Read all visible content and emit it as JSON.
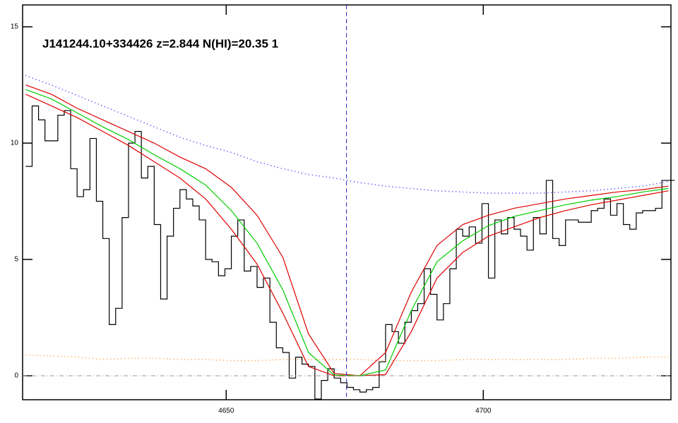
{
  "chart_data": {
    "type": "line",
    "annotation": "J141244.10+334426 z=2.844 N(HI)=20.35 1",
    "xlim": [
      4610.4,
      4736.5
    ],
    "ylim": [
      -1.03,
      15.94
    ],
    "xticks": [
      4650,
      4700
    ],
    "yticks": [
      0,
      5,
      10,
      15
    ],
    "vline": 4673.4,
    "hline": 0,
    "series": [
      {
        "name": "flux",
        "color": "#000000",
        "style": "step",
        "x": [
          4611.0,
          4612.25,
          4613.5,
          4614.75,
          4616.0,
          4617.25,
          4618.5,
          4619.75,
          4621.0,
          4622.25,
          4623.5,
          4624.75,
          4626.0,
          4627.25,
          4628.5,
          4629.75,
          4631.0,
          4632.25,
          4633.5,
          4634.75,
          4636.0,
          4637.25,
          4638.5,
          4639.75,
          4641.0,
          4642.25,
          4643.5,
          4644.75,
          4646.0,
          4647.25,
          4648.5,
          4649.75,
          4651.0,
          4652.25,
          4653.5,
          4654.75,
          4656.0,
          4657.25,
          4658.5,
          4659.75,
          4661.0,
          4662.25,
          4663.5,
          4664.75,
          4666.0,
          4667.25,
          4668.5,
          4669.75,
          4671.0,
          4672.25,
          4673.5,
          4674.75,
          4676.0,
          4677.25,
          4678.5,
          4679.75,
          4681.0,
          4682.25,
          4683.5,
          4684.75,
          4686.0,
          4687.25,
          4688.5,
          4689.75,
          4691.0,
          4692.25,
          4693.5,
          4694.75,
          4696.0,
          4697.25,
          4698.5,
          4699.75,
          4701.0,
          4702.25,
          4703.5,
          4704.75,
          4706.0,
          4707.25,
          4708.5,
          4709.75,
          4711.0,
          4712.25,
          4713.5,
          4714.75,
          4716.0,
          4717.25,
          4718.5,
          4719.75,
          4721.0,
          4722.25,
          4723.5,
          4724.75,
          4726.0,
          4727.25,
          4728.5,
          4729.75,
          4731.0,
          4732.25,
          4733.5,
          4734.75,
          4736.0
        ],
        "values": [
          9.0,
          11.6,
          11.0,
          10.1,
          10.1,
          11.2,
          11.4,
          8.9,
          7.7,
          8.0,
          10.2,
          7.5,
          5.9,
          2.2,
          2.9,
          6.8,
          10.0,
          10.5,
          8.5,
          9.0,
          6.5,
          3.3,
          6.0,
          7.2,
          8.0,
          7.6,
          7.3,
          6.7,
          5.0,
          4.9,
          4.3,
          4.6,
          6.0,
          6.7,
          4.5,
          4.7,
          3.8,
          4.2,
          2.3,
          1.2,
          1.0,
          -0.1,
          0.8,
          0.5,
          0.4,
          -1.0,
          -0.2,
          0.3,
          -0.1,
          -0.3,
          -0.5,
          -0.6,
          -0.7,
          -0.6,
          -0.5,
          0.6,
          2.2,
          1.9,
          1.4,
          2.3,
          2.8,
          3.1,
          4.6,
          3.5,
          2.4,
          3.1,
          4.6,
          6.3,
          6.0,
          6.4,
          5.7,
          7.4,
          4.2,
          6.7,
          6.1,
          6.8,
          6.3,
          6.0,
          5.4,
          6.8,
          6.1,
          8.4,
          5.9,
          5.6,
          6.7,
          6.7,
          6.6,
          6.6,
          7.1,
          7.2,
          7.6,
          6.9,
          7.4,
          6.5,
          6.3,
          7.0,
          7.1,
          7.1,
          7.2,
          8.4,
          8.4
        ]
      },
      {
        "name": "continuum",
        "color": "#3333ff",
        "style": "dotted",
        "x": [
          4611,
          4616,
          4621,
          4626,
          4631,
          4636,
          4641,
          4646,
          4651,
          4656,
          4661,
          4666,
          4671,
          4676,
          4681,
          4686,
          4691,
          4696,
          4701,
          4706,
          4711,
          4716,
          4721,
          4726,
          4731,
          4736
        ],
        "values": [
          12.9,
          12.5,
          12.05,
          11.6,
          11.15,
          10.7,
          10.25,
          9.9,
          9.6,
          9.2,
          8.9,
          8.65,
          8.5,
          8.3,
          8.15,
          8.05,
          7.95,
          7.9,
          7.85,
          7.85,
          7.85,
          7.9,
          7.95,
          8.05,
          8.15,
          8.35
        ]
      },
      {
        "name": "error",
        "color": "#ff9933",
        "style": "dotted",
        "x": [
          4611,
          4616,
          4621,
          4626,
          4631,
          4636,
          4641,
          4646,
          4651,
          4656,
          4661,
          4666,
          4671,
          4676,
          4681,
          4686,
          4691,
          4696,
          4701,
          4706,
          4711,
          4716,
          4721,
          4726,
          4731,
          4736
        ],
        "values": [
          0.9,
          0.85,
          0.8,
          0.7,
          0.75,
          0.75,
          0.7,
          0.7,
          0.65,
          0.65,
          0.7,
          0.7,
          0.7,
          0.7,
          0.65,
          0.65,
          0.65,
          0.7,
          0.7,
          0.7,
          0.7,
          0.7,
          0.75,
          0.75,
          0.8,
          0.8
        ]
      },
      {
        "name": "fit-upper",
        "color": "#dd0000",
        "style": "solid",
        "x": [
          4611,
          4616,
          4621,
          4626,
          4631,
          4636,
          4641,
          4646,
          4651,
          4656,
          4661,
          4666,
          4671,
          4676,
          4681,
          4686,
          4691,
          4696,
          4701,
          4706,
          4711,
          4716,
          4721,
          4726,
          4731,
          4736
        ],
        "values": [
          12.5,
          12.1,
          11.5,
          11.0,
          10.5,
          10.0,
          9.4,
          8.9,
          8.1,
          6.9,
          5.1,
          1.8,
          0.1,
          0,
          1.0,
          3.6,
          5.6,
          6.5,
          6.9,
          7.2,
          7.4,
          7.6,
          7.75,
          7.9,
          8.0,
          8.15
        ]
      },
      {
        "name": "fit-lower",
        "color": "#dd0000",
        "style": "solid",
        "x": [
          4611,
          4616,
          4621,
          4626,
          4631,
          4636,
          4641,
          4646,
          4651,
          4656,
          4661,
          4666,
          4671,
          4676,
          4681,
          4686,
          4691,
          4696,
          4701,
          4706,
          4711,
          4716,
          4721,
          4726,
          4731,
          4736
        ],
        "values": [
          12.1,
          11.6,
          11.1,
          10.5,
          9.9,
          9.2,
          8.5,
          7.6,
          6.3,
          4.8,
          2.7,
          0.4,
          0,
          0,
          0.05,
          1.9,
          4.2,
          5.3,
          6.0,
          6.4,
          6.8,
          7.1,
          7.35,
          7.55,
          7.75,
          7.95
        ]
      },
      {
        "name": "fit",
        "color": "#00cc00",
        "style": "solid",
        "x": [
          4611,
          4616,
          4621,
          4626,
          4631,
          4636,
          4641,
          4646,
          4651,
          4656,
          4661,
          4666,
          4671,
          4676,
          4681,
          4686,
          4691,
          4696,
          4701,
          4706,
          4711,
          4716,
          4721,
          4726,
          4731,
          4736
        ],
        "values": [
          12.3,
          11.9,
          11.3,
          10.7,
          10.15,
          9.5,
          8.9,
          8.2,
          7.1,
          5.7,
          3.7,
          1.0,
          0.03,
          0,
          0.25,
          2.8,
          4.9,
          5.8,
          6.45,
          6.85,
          7.1,
          7.35,
          7.55,
          7.7,
          7.9,
          8.05
        ]
      }
    ]
  }
}
